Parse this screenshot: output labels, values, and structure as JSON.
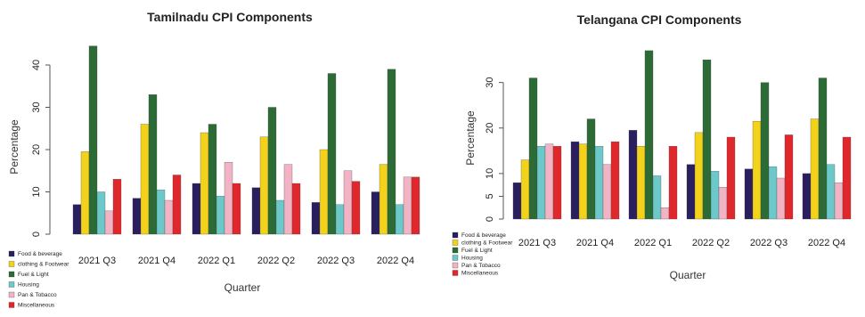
{
  "chart_data": [
    {
      "type": "bar",
      "title": "Tamilnadu CPI Components",
      "xlabel": "Quarter",
      "ylabel": "Percentage",
      "ylim": [
        0,
        44
      ],
      "yticks": [
        0,
        10,
        20,
        30,
        40
      ],
      "categories": [
        "2021 Q3",
        "2021 Q4",
        "2022 Q1",
        "2022 Q2",
        "2022 Q3",
        "2022 Q4"
      ],
      "legend_position": "bottom-left",
      "series": [
        {
          "name": "Food & beverage",
          "color": "#2a1f5e",
          "values": [
            7,
            8.5,
            12,
            11,
            7.5,
            10
          ]
        },
        {
          "name": "clothing & Footwear",
          "color": "#f2d21b",
          "values": [
            19.5,
            26,
            24,
            23,
            20,
            16.5
          ]
        },
        {
          "name": "Fuel & Light",
          "color": "#2c6b35",
          "values": [
            44.5,
            33,
            26,
            30,
            38,
            39
          ]
        },
        {
          "name": "Housing",
          "color": "#6dc9c9",
          "values": [
            10,
            10.5,
            9,
            8,
            7,
            7
          ]
        },
        {
          "name": "Pan & Tobacco",
          "color": "#f2b4c4",
          "values": [
            5.5,
            8,
            17,
            16.5,
            15,
            13.5
          ]
        },
        {
          "name": "Miscellaneous",
          "color": "#e0282c",
          "values": [
            13,
            14,
            12,
            12,
            12.5,
            13.5
          ]
        }
      ]
    },
    {
      "type": "bar",
      "title": "Telangana CPI Components",
      "xlabel": "Quarter",
      "ylabel": "Percentage",
      "ylim": [
        0,
        36
      ],
      "yticks": [
        0,
        5,
        10,
        20,
        30
      ],
      "categories": [
        "2021 Q3",
        "2021 Q4",
        "2022 Q1",
        "2022 Q2",
        "2022 Q3",
        "2022 Q4"
      ],
      "legend_position": "bottom-left",
      "series": [
        {
          "name": "Food & beverage",
          "color": "#2a1f5e",
          "values": [
            8,
            17,
            19.5,
            12,
            11,
            10
          ]
        },
        {
          "name": "clothing & Footwear",
          "color": "#f2d21b",
          "values": [
            13,
            16.5,
            16,
            19,
            21.5,
            22
          ]
        },
        {
          "name": "Fuel & Light",
          "color": "#2c6b35",
          "values": [
            31,
            22,
            37,
            35,
            30,
            31
          ]
        },
        {
          "name": "Housing",
          "color": "#6dc9c9",
          "values": [
            16,
            16,
            9.5,
            10.5,
            11.5,
            12
          ]
        },
        {
          "name": "Pan & Tobacco",
          "color": "#f2b4c4",
          "values": [
            16.5,
            12,
            2.5,
            7,
            9,
            8
          ]
        },
        {
          "name": "Miscellaneous",
          "color": "#e0282c",
          "values": [
            16,
            17,
            16,
            18,
            18.5,
            18
          ]
        }
      ]
    }
  ]
}
